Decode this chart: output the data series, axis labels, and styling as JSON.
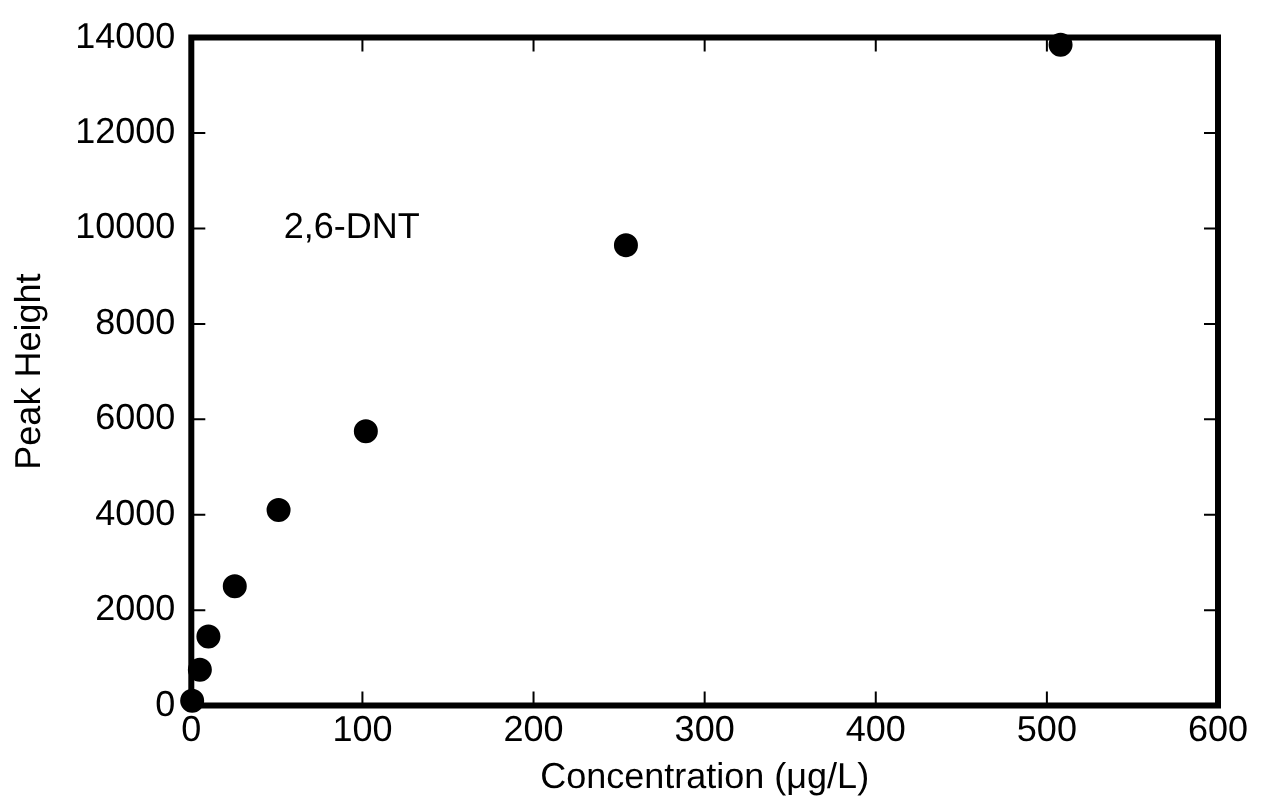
{
  "chart_data": {
    "type": "scatter",
    "xlabel": "Concentration (μg/L)",
    "ylabel": "Peak Height",
    "annotations": [
      "2,6-DNT"
    ],
    "x": [
      0.5,
      2.5,
      5,
      10,
      25.4,
      51,
      102,
      254,
      508
    ],
    "values": [
      100,
      null,
      750,
      1450,
      2500,
      4100,
      5750,
      9650,
      13850
    ],
    "color": "#000000",
    "marker": "circle",
    "grid": false,
    "legend": false,
    "xlim": [
      0,
      600
    ],
    "xticks": [
      0,
      100,
      200,
      300,
      400,
      500,
      600
    ],
    "ylim": [
      0,
      14000
    ],
    "yticks": [
      0,
      2000,
      4000,
      6000,
      8000,
      10000,
      12000,
      14000
    ]
  }
}
